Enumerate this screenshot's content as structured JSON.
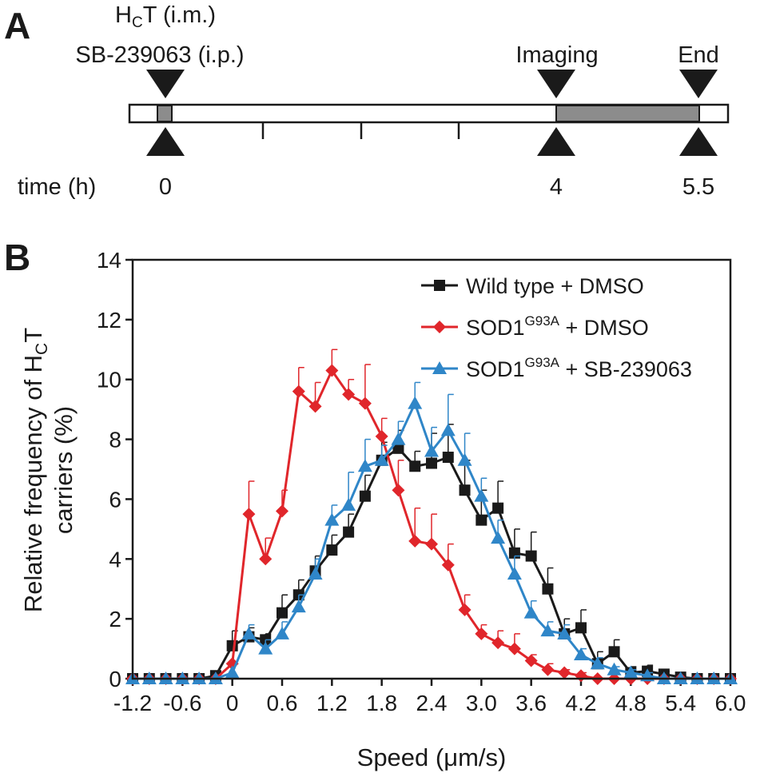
{
  "panel_a": {
    "label": "A",
    "drug_hct": "H",
    "drug_hct_sub": "C",
    "drug_hct_rest": "T (i.m.)",
    "drug_sb": "SB-239063 (i.p.)",
    "imaging_label": "Imaging",
    "end_label": "End",
    "time_label": "time (h)",
    "ticks": [
      "0",
      "4",
      "5.5"
    ]
  },
  "panel_b": {
    "label": "B"
  },
  "colors": {
    "wild_type": "#1a1a1a",
    "sod1_dmso": "#e0262b",
    "sod1_sb": "#2f86c8",
    "bar_fill": "#8c8c8c"
  },
  "chart_data": {
    "type": "line",
    "xlabel": "Speed (μm/s)",
    "ylabel_line1_pre": "Relative frequency of H",
    "ylabel_line1_sub": "C",
    "ylabel_line1_post": "T",
    "ylabel_line2": "carriers (%)",
    "xlim": [
      -1.2,
      6.0
    ],
    "ylim": [
      0,
      14
    ],
    "x_ticks": [
      "-1.2",
      "-0.6",
      "0",
      "0.6",
      "1.2",
      "1.8",
      "2.4",
      "3.0",
      "3.6",
      "4.2",
      "4.8",
      "5.4",
      "6.0"
    ],
    "y_ticks": [
      "0",
      "2",
      "4",
      "6",
      "8",
      "10",
      "12",
      "14"
    ],
    "legend_position": "top-right",
    "x": [
      -1.2,
      -1.0,
      -0.8,
      -0.6,
      -0.4,
      -0.2,
      0.0,
      0.2,
      0.4,
      0.6,
      0.8,
      1.0,
      1.2,
      1.4,
      1.6,
      1.8,
      2.0,
      2.2,
      2.4,
      2.6,
      2.8,
      3.0,
      3.2,
      3.4,
      3.6,
      3.8,
      4.0,
      4.2,
      4.4,
      4.6,
      4.8,
      5.0,
      5.2,
      5.4,
      5.6,
      5.8,
      6.0
    ],
    "series": [
      {
        "name": "Wild type + DMSO",
        "name_main": "Wild type + DMSO",
        "name_sup": "",
        "name_post": "",
        "marker": "square",
        "values": [
          0,
          0,
          0,
          0,
          0,
          0.1,
          1.1,
          1.4,
          1.3,
          2.2,
          2.8,
          3.6,
          4.3,
          4.9,
          6.1,
          7.3,
          7.7,
          7.1,
          7.2,
          7.4,
          6.3,
          5.3,
          5.7,
          4.2,
          4.1,
          3.0,
          1.5,
          1.7,
          0.5,
          0.9,
          0.2,
          0.25,
          0.15,
          0.05,
          0,
          0,
          0
        ],
        "errors": [
          0,
          0,
          0,
          0,
          0,
          0,
          0.5,
          0.3,
          0.2,
          0.6,
          0.5,
          0.5,
          0.5,
          0.6,
          0.7,
          0.6,
          0.6,
          0.5,
          1.0,
          1.1,
          1.0,
          1.0,
          0.9,
          0.8,
          0.8,
          0.7,
          0.5,
          0.6,
          0.4,
          0.4,
          0.2,
          0.2,
          0.1,
          0.05,
          0,
          0,
          0
        ]
      },
      {
        "name": "SOD1G93A + DMSO",
        "name_main": "SOD1",
        "name_sup": "G93A",
        "name_post": " + DMSO",
        "marker": "diamond",
        "values": [
          0,
          0,
          0,
          0,
          0,
          0,
          0.5,
          5.5,
          4.0,
          5.6,
          9.6,
          9.1,
          10.3,
          9.5,
          9.2,
          8.1,
          6.3,
          4.6,
          4.5,
          3.8,
          2.3,
          1.5,
          1.2,
          1.0,
          0.6,
          0.3,
          0.2,
          0.1,
          0,
          0,
          0,
          0,
          0,
          0,
          0,
          0,
          0
        ],
        "errors": [
          0,
          0,
          0,
          0,
          0,
          0,
          0,
          1.1,
          0.7,
          0.7,
          0.8,
          0.8,
          0.7,
          0.5,
          1.3,
          0.6,
          1.0,
          1.1,
          1.0,
          0.7,
          0.5,
          0.3,
          0.4,
          0.5,
          0.2,
          0.2,
          0.1,
          0.1,
          0,
          0,
          0,
          0,
          0,
          0,
          0,
          0,
          0
        ]
      },
      {
        "name": "SOD1G93A + SB-239063",
        "name_main": "SOD1",
        "name_sup": "G93A",
        "name_post": " + SB-239063",
        "marker": "triangle",
        "values": [
          0,
          0,
          0,
          0,
          0,
          0,
          0.2,
          1.5,
          1.0,
          1.5,
          2.4,
          3.5,
          5.3,
          5.8,
          7.1,
          7.3,
          8.0,
          9.2,
          7.6,
          8.3,
          7.3,
          6.1,
          4.7,
          3.5,
          2.2,
          1.6,
          1.5,
          0.8,
          0.5,
          0.3,
          0.2,
          0.1,
          0,
          0,
          0,
          0,
          0
        ],
        "errors": [
          0,
          0,
          0,
          0,
          0,
          0,
          0,
          0.3,
          0.3,
          0.4,
          0.4,
          0.5,
          0.5,
          1.1,
          0.9,
          0.5,
          0.6,
          0.7,
          0.8,
          1.2,
          0.9,
          0.6,
          0.6,
          0.6,
          0.4,
          0.3,
          0.3,
          0.2,
          0.2,
          0.1,
          0.1,
          0.1,
          0,
          0,
          0,
          0,
          0
        ]
      }
    ]
  }
}
